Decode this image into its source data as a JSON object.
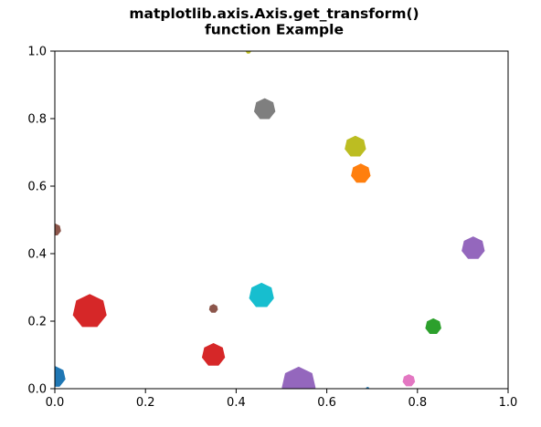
{
  "chart_data": {
    "type": "scatter",
    "title_lines": [
      "matplotlib.axis.Axis.get_transform()",
      "function Example"
    ],
    "xlabel": "",
    "ylabel": "",
    "xlim": [
      0,
      1
    ],
    "ylim": [
      0,
      1
    ],
    "xticks": [
      0.0,
      0.2,
      0.4,
      0.6,
      0.8,
      1.0
    ],
    "yticks": [
      0.0,
      0.2,
      0.4,
      0.6,
      0.8,
      1.0
    ],
    "xtick_labels": [
      "0.0",
      "0.2",
      "0.4",
      "0.6",
      "0.8",
      "1.0"
    ],
    "ytick_labels": [
      "0.0",
      "0.2",
      "0.4",
      "0.6",
      "0.8",
      "1.0"
    ],
    "grid": false,
    "legend": "none",
    "marker": "heptagon",
    "points": [
      {
        "x": 0.0,
        "y": 0.035,
        "color": "#1f77b4",
        "size": 12
      },
      {
        "x": 0.675,
        "y": 0.637,
        "color": "#ff7f0e",
        "size": 11
      },
      {
        "x": 0.835,
        "y": 0.184,
        "color": "#2ca02c",
        "size": 9
      },
      {
        "x": 0.077,
        "y": 0.229,
        "color": "#d62728",
        "size": 19
      },
      {
        "x": 0.35,
        "y": 0.1,
        "color": "#d62728",
        "size": 13
      },
      {
        "x": 0.923,
        "y": 0.416,
        "color": "#9467bd",
        "size": 13
      },
      {
        "x": 0.538,
        "y": 0.014,
        "color": "#9467bd",
        "size": 19
      },
      {
        "x": 0.0,
        "y": 0.471,
        "color": "#8c564b",
        "size": 7
      },
      {
        "x": 0.35,
        "y": 0.237,
        "color": "#8c564b",
        "size": 5
      },
      {
        "x": 0.781,
        "y": 0.024,
        "color": "#e377c2",
        "size": 7
      },
      {
        "x": 0.463,
        "y": 0.828,
        "color": "#7f7f7f",
        "size": 12
      },
      {
        "x": 0.663,
        "y": 0.717,
        "color": "#bcbd22",
        "size": 12
      },
      {
        "x": 0.427,
        "y": 1.0,
        "color": "#bcbd22",
        "size": 3
      },
      {
        "x": 0.456,
        "y": 0.276,
        "color": "#17becf",
        "size": 14
      },
      {
        "x": 0.69,
        "y": 0.0,
        "color": "#1f77b4",
        "size": 2
      }
    ]
  }
}
